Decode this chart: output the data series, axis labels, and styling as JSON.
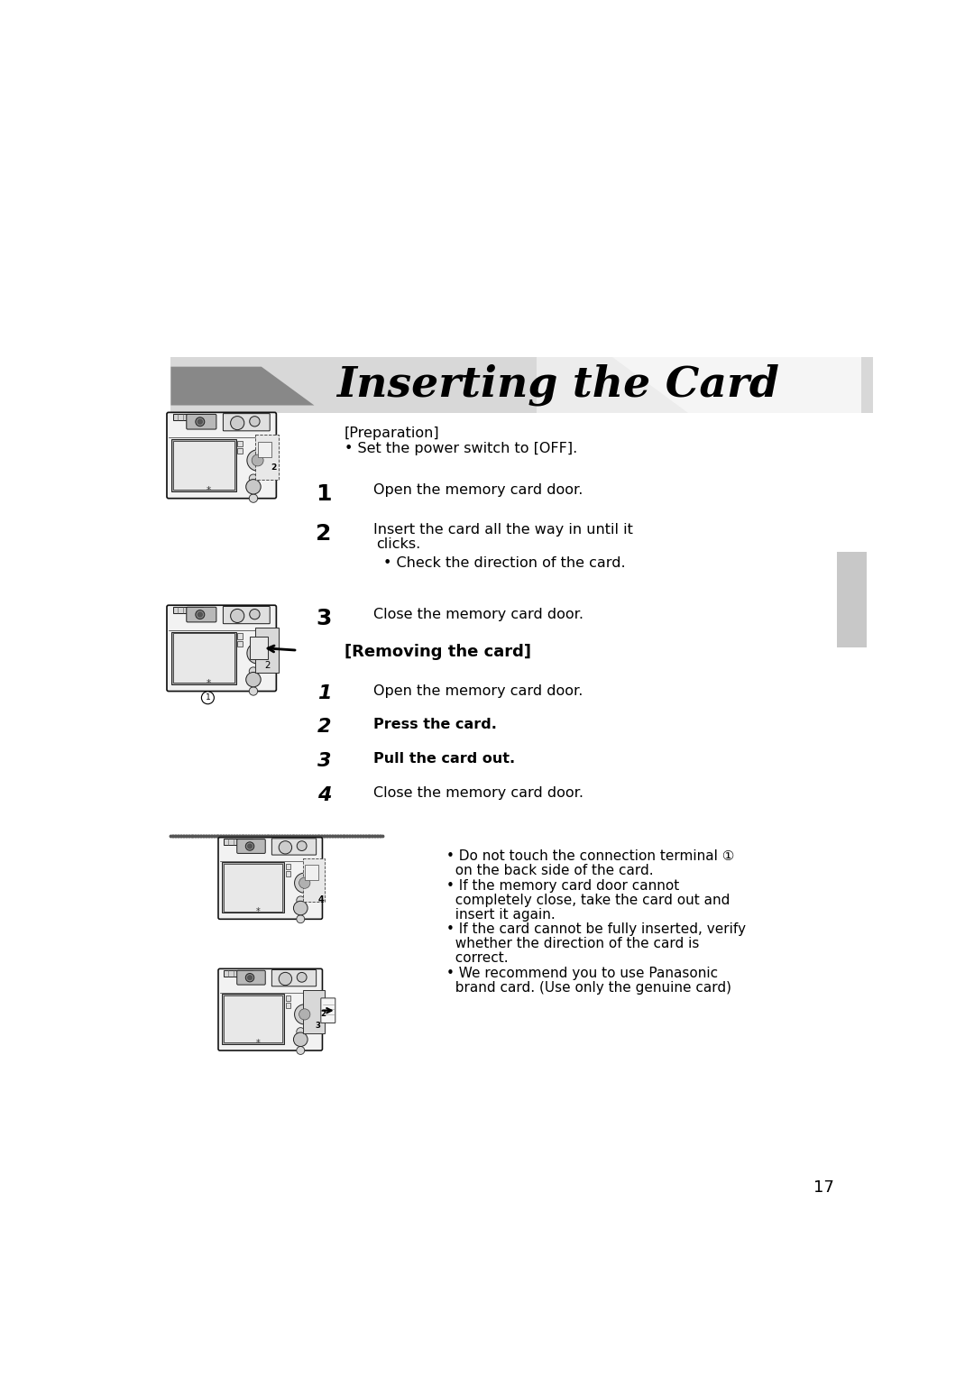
{
  "bg_color": "#ffffff",
  "page_number": "17",
  "title": "Inserting the Card",
  "preparation_label": "[Preparation]",
  "bullet_power": "• Set the power switch to [OFF].",
  "inserting_steps": [
    {
      "num": "1",
      "text": "Open the memory card door."
    },
    {
      "num": "2",
      "text": "Insert the card all the way in until it\nclicks."
    },
    {
      "num": "3",
      "text": "Close the memory card door."
    }
  ],
  "check_direction": "• Check the direction of the card.",
  "removing_label": "[Removing the card]",
  "removing_steps": [
    {
      "num": "1",
      "text": "Open the memory card door.",
      "italic_num": true
    },
    {
      "num": "2",
      "text": "Press the card.",
      "italic_num": true
    },
    {
      "num": "3",
      "text": "Pull the card out.",
      "italic_num": true
    },
    {
      "num": "4",
      "text": "Close the memory card door.",
      "italic_num": false
    }
  ],
  "notes": [
    [
      "• Do not touch the connection terminal ①",
      ""
    ],
    [
      "  on the back side of the card.",
      ""
    ],
    [
      "• If the memory card door cannot",
      ""
    ],
    [
      "  completely close, take the card out and",
      ""
    ],
    [
      "  insert it again.",
      ""
    ],
    [
      "• If the card cannot be fully inserted, verify",
      ""
    ],
    [
      "  whether the direction of the card is",
      ""
    ],
    [
      "  correct.",
      ""
    ],
    [
      "• We recommend you to use Panasonic",
      ""
    ],
    [
      "  brand card. (Use only the genuine card)",
      ""
    ]
  ],
  "sidebar_color": "#c8c8c8",
  "dot_sep_color": "#555555"
}
